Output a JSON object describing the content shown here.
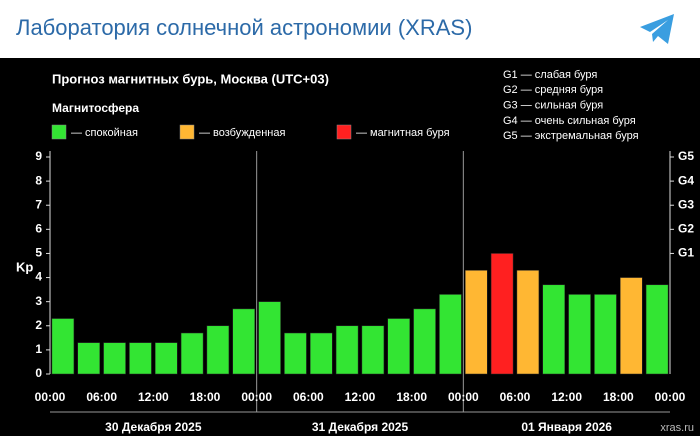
{
  "header": {
    "title": "Лаборатория солнечной астрономии (XRAS)"
  },
  "chart_data": {
    "type": "bar",
    "title": "Прогноз магнитных бурь, Москва (UTC+03)",
    "legend_title": "Магнитосфера",
    "ylabel": "Kp",
    "ylim": [
      0,
      9
    ],
    "yticks": [
      0,
      1,
      2,
      3,
      4,
      5,
      6,
      7,
      8,
      9
    ],
    "y2lim": [
      0,
      9
    ],
    "y2ticks": [
      {
        "value": 5,
        "label": "G1"
      },
      {
        "value": 6,
        "label": "G2"
      },
      {
        "value": 7,
        "label": "G3"
      },
      {
        "value": 8,
        "label": "G4"
      },
      {
        "value": 9,
        "label": "G5"
      }
    ],
    "xtick_labels": [
      "00:00",
      "06:00",
      "12:00",
      "18:00",
      "00:00",
      "06:00",
      "12:00",
      "18:00",
      "00:00",
      "06:00",
      "12:00",
      "18:00",
      "00:00"
    ],
    "day_labels": [
      "30 Декабря 2025",
      "31 Декабря 2025",
      "01 Января 2026"
    ],
    "series": [
      {
        "name": "спокойная",
        "color": "#33e533",
        "values": [
          2.3,
          1.3,
          1.3,
          1.3,
          1.3,
          1.7,
          2.0,
          2.7,
          3.0,
          1.7,
          1.7,
          2.0,
          2.0,
          2.3,
          2.7,
          3.3,
          null,
          null,
          null,
          3.7,
          3.3,
          3.3,
          null,
          3.7
        ]
      },
      {
        "name": "возбужденная",
        "color": "#ffb733",
        "values": [
          null,
          null,
          null,
          null,
          null,
          null,
          null,
          null,
          null,
          null,
          null,
          null,
          null,
          null,
          null,
          null,
          4.3,
          null,
          4.3,
          null,
          null,
          null,
          4.0,
          null
        ]
      },
      {
        "name": "магнитная буря",
        "color": "#ff2020",
        "values": [
          null,
          null,
          null,
          null,
          null,
          null,
          null,
          null,
          null,
          null,
          null,
          null,
          null,
          null,
          null,
          null,
          null,
          5.0,
          null,
          null,
          null,
          null,
          null,
          null
        ]
      }
    ],
    "annotations": [
      "G1 — слабая буря",
      "G2 — средняя буря",
      "G3 — сильная буря",
      "G4 — очень сильная буря",
      "G5 — экстремальная буря",
      "xras.ru"
    ]
  }
}
